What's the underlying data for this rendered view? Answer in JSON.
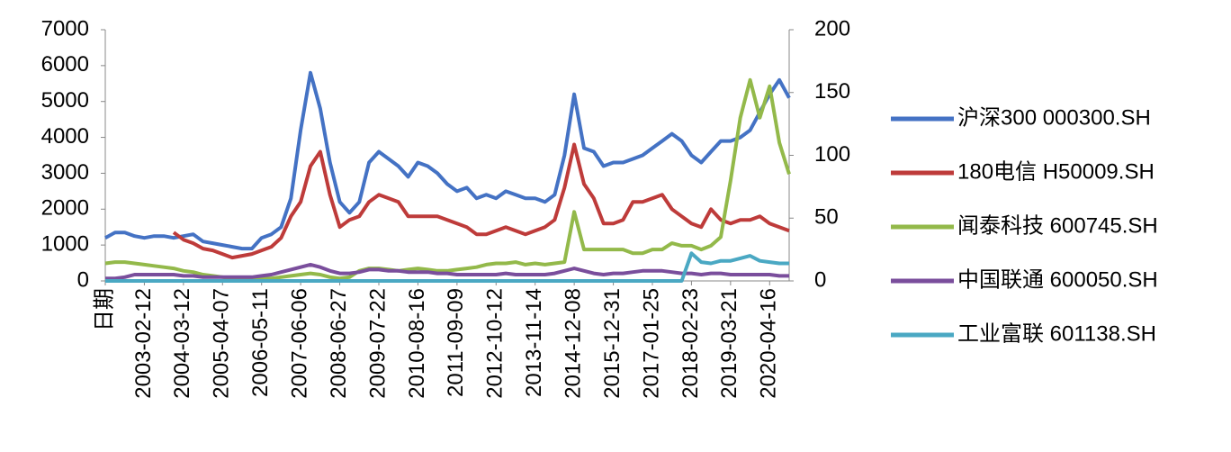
{
  "chart_data": {
    "type": "line",
    "categories": [
      "日期",
      null,
      null,
      null,
      "2003-02-12",
      null,
      null,
      null,
      "2004-03-12",
      null,
      null,
      null,
      "2005-04-07",
      null,
      null,
      null,
      "2006-05-11",
      null,
      null,
      null,
      "2007-06-06",
      null,
      null,
      null,
      "2008-06-27",
      null,
      null,
      null,
      "2009-07-22",
      null,
      null,
      null,
      "2010-08-16",
      null,
      null,
      null,
      "2011-09-09",
      null,
      null,
      null,
      "2012-10-12",
      null,
      null,
      null,
      "2013-11-14",
      null,
      null,
      null,
      "2014-12-08",
      null,
      null,
      null,
      "2015-12-31",
      null,
      null,
      null,
      "2017-01-25",
      null,
      null,
      null,
      "2018-02-23",
      null,
      null,
      null,
      "2019-03-21",
      null,
      null,
      null,
      "2020-04-16",
      null,
      null
    ],
    "ylim": [
      0,
      7000
    ],
    "yticks": [
      0,
      1000,
      2000,
      3000,
      4000,
      5000,
      6000,
      7000
    ],
    "y2lim": [
      0,
      200
    ],
    "y2ticks": [
      0,
      50,
      100,
      150,
      200
    ],
    "legend": "right",
    "series": [
      {
        "name": "沪深300 000300.SH",
        "color": "#4472c4",
        "values": [
          1200,
          1350,
          1350,
          1250,
          1200,
          1250,
          1250,
          1200,
          1250,
          1300,
          1100,
          1050,
          1000,
          950,
          900,
          900,
          1200,
          1300,
          1500,
          2300,
          4200,
          5800,
          4800,
          3300,
          2200,
          1900,
          2200,
          3300,
          3600,
          3400,
          3200,
          2900,
          3300,
          3200,
          3000,
          2700,
          2500,
          2600,
          2300,
          2400,
          2300,
          2500,
          2400,
          2300,
          2300,
          2200,
          2400,
          3500,
          5200,
          3700,
          3600,
          3200,
          3300,
          3300,
          3400,
          3500,
          3700,
          3900,
          4100,
          3900,
          3500,
          3300,
          3600,
          3900,
          3900,
          4000,
          4200,
          4700,
          5200,
          5600,
          5100
        ]
      },
      {
        "name": "180电信 H50009.SH",
        "color": "#be3b3a",
        "values": [
          null,
          null,
          null,
          null,
          null,
          null,
          null,
          1350,
          1150,
          1050,
          900,
          850,
          750,
          650,
          700,
          750,
          850,
          950,
          1200,
          1800,
          2200,
          3200,
          3600,
          2400,
          1500,
          1700,
          1800,
          2200,
          2400,
          2300,
          2200,
          1800,
          1800,
          1800,
          1800,
          1700,
          1600,
          1500,
          1300,
          1300,
          1400,
          1500,
          1400,
          1300,
          1400,
          1500,
          1700,
          2600,
          3800,
          2700,
          2300,
          1600,
          1600,
          1700,
          2200,
          2200,
          2300,
          2400,
          2000,
          1800,
          1600,
          1500,
          2000,
          1700,
          1600,
          1700,
          1700,
          1800,
          1600,
          1500,
          1400
        ]
      },
      {
        "name": "闻泰科技 600745.SH",
        "color": "#93b94a",
        "axis": "y2",
        "values": [
          14,
          15,
          15,
          14,
          13,
          12,
          11,
          10,
          8,
          7,
          5,
          4,
          3,
          2,
          2,
          2,
          2,
          2,
          3,
          4,
          5,
          6,
          5,
          3,
          2,
          3,
          8,
          10,
          10,
          9,
          8,
          9,
          10,
          9,
          8,
          8,
          9,
          10,
          11,
          13,
          14,
          14,
          15,
          13,
          14,
          13,
          14,
          15,
          55,
          25,
          25,
          25,
          25,
          25,
          22,
          22,
          25,
          25,
          30,
          28,
          28,
          25,
          28,
          35,
          80,
          130,
          160,
          130,
          155,
          110,
          85
        ]
      },
      {
        "name": "中国联通 600050.SH",
        "color": "#7a4e9c",
        "axis": "y2",
        "values": [
          2,
          2,
          3,
          5,
          5,
          5,
          5,
          5,
          4,
          4,
          3,
          3,
          3,
          3,
          3,
          3,
          4,
          5,
          7,
          9,
          11,
          13,
          11,
          8,
          6,
          6,
          7,
          9,
          9,
          8,
          8,
          7,
          7,
          7,
          6,
          6,
          5,
          5,
          5,
          5,
          5,
          6,
          5,
          5,
          5,
          5,
          6,
          8,
          10,
          8,
          6,
          5,
          6,
          6,
          7,
          8,
          8,
          8,
          7,
          6,
          6,
          5,
          6,
          6,
          5,
          5,
          5,
          5,
          5,
          4,
          4
        ]
      },
      {
        "name": "工业富联 601138.SH",
        "color": "#4aa8c3",
        "axis": "y2",
        "values": [
          0,
          0,
          0,
          0,
          0,
          0,
          0,
          0,
          0,
          0,
          0,
          0,
          0,
          0,
          0,
          0,
          0,
          0,
          0,
          0,
          0,
          0,
          0,
          0,
          0,
          0,
          0,
          0,
          0,
          0,
          0,
          0,
          0,
          0,
          0,
          0,
          0,
          0,
          0,
          0,
          0,
          0,
          0,
          0,
          0,
          0,
          0,
          0,
          0,
          0,
          0,
          0,
          0,
          0,
          0,
          0,
          0,
          0,
          0,
          0,
          22,
          15,
          14,
          16,
          16,
          18,
          20,
          16,
          15,
          14,
          14
        ]
      }
    ]
  }
}
